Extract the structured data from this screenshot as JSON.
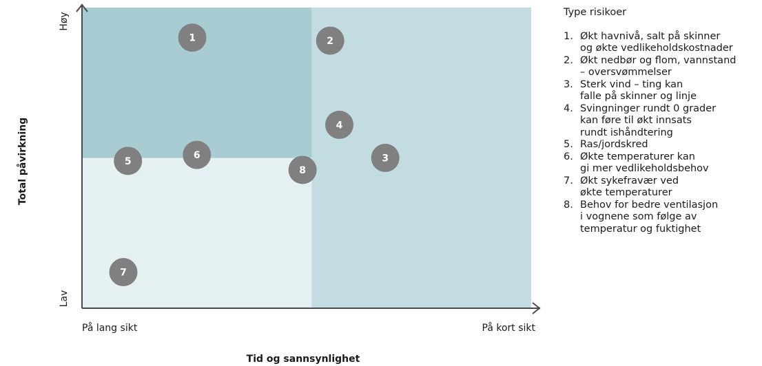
{
  "chart_data": {
    "type": "scatter",
    "xlabel": "Tid og sannsynlighet",
    "ylabel": "Total påvirkning",
    "x_tick_labels": [
      "På lang sikt",
      "På kort sikt"
    ],
    "y_tick_labels": [
      "Lav",
      "Høy"
    ],
    "xlim": [
      0,
      1
    ],
    "ylim": [
      0,
      1
    ],
    "quadrant_split": {
      "x": 0.5,
      "y": 0.5
    },
    "quadrant_colors": {
      "high_impact_long_term": "#a9ccd3",
      "high_impact_short_term": "#c3dce1",
      "low_impact_long_term": "#e5f0f2",
      "low_impact_short_term": "#c3dce1"
    },
    "axis_color": "#4a4a4a",
    "marker_color": "#808080",
    "marker_label_color": "#ffffff",
    "points": [
      {
        "label": "1",
        "x": 0.24,
        "y": 0.9
      },
      {
        "label": "2",
        "x": 0.54,
        "y": 0.89
      },
      {
        "label": "3",
        "x": 0.66,
        "y": 0.5
      },
      {
        "label": "4",
        "x": 0.56,
        "y": 0.61
      },
      {
        "label": "5",
        "x": 0.1,
        "y": 0.49
      },
      {
        "label": "6",
        "x": 0.25,
        "y": 0.51
      },
      {
        "label": "7",
        "x": 0.09,
        "y": 0.12
      },
      {
        "label": "8",
        "x": 0.48,
        "y": 0.46
      }
    ],
    "legend": {
      "title": "Type risikoer",
      "placement": "right",
      "items": [
        {
          "num": "1.",
          "text": "Økt havnivå, salt på skinner\nog økte vedlikeholdskostnader"
        },
        {
          "num": "2.",
          "text": "Økt nedbør og flom, vannstand\n– oversvømmelser"
        },
        {
          "num": "3.",
          "text": "Sterk vind – ting kan\nfalle på skinner og linje"
        },
        {
          "num": "4.",
          "text": "Svingninger rundt 0 grader\nkan føre til økt innsats\nrundt ishåndtering"
        },
        {
          "num": "5.",
          "text": "Ras/jordskred"
        },
        {
          "num": "6.",
          "text": "Økte temperaturer kan\ngi mer vedlikeholdsbehov"
        },
        {
          "num": "7.",
          "text": "Økt sykefravær ved\nøkte temperaturer"
        },
        {
          "num": "8.",
          "text": "Behov for bedre ventilasjon\ni vognene som følge av\ntemperatur og fuktighet"
        }
      ]
    }
  }
}
